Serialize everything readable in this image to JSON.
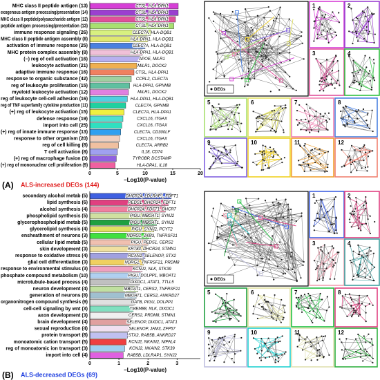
{
  "chart_data": [
    {
      "type": "bar",
      "orientation": "horizontal",
      "panel": "(A)",
      "title": "ALS-increased DEGs (144)",
      "title_color": "#e02020",
      "xlabel": "−Log10(P-value)",
      "xlim": [
        0,
        20
      ],
      "xticks": [
        0,
        5,
        10,
        15,
        20
      ],
      "categories": [
        "MHC class II peptide antigen (13)",
        "exogenous antigen processing/presentation (14)",
        "MHC class II peptide/polysaccharide antigen (12)",
        "peptide antigen processing/presentation (13)",
        "immune response signaling (26)",
        "MHC class II peptide antigen assembly (8)",
        "activation of immune response (25)",
        "MHC protein complex assembly (8)",
        "(−) reg of cell activation (16)",
        "leukocyte activation (21)",
        "adaptive immune response (16)",
        "response to organic substance (42)",
        "reg of leukocyte proliferation (15)",
        "myeloid leukocyte activation (12)",
        "reg of leukocyte cell-cell adhesion (16)",
        "reg of TNF superfamily cytokine production (11)",
        "(+) reg of leukocyte activation (15)",
        "defense response (19)",
        "import into cell (25)",
        "(+) reg of innate immune response (13)",
        "response to other organism (20)",
        "reg of cell killing (8)",
        "T cell activation (8)",
        "(+) reg of macrophage fusion (3)",
        "(+) reg of mononuclear cell proliferation (9)"
      ],
      "values": [
        16,
        16,
        15.5,
        15.2,
        11,
        10.5,
        10,
        9.5,
        9,
        8.5,
        8,
        7.5,
        7.2,
        7,
        6.8,
        6.5,
        6.2,
        6,
        5.8,
        5.6,
        5.4,
        5.2,
        5,
        4.8,
        4.6
      ],
      "gene_labels": [
        "CTSL, HLA-DPA1",
        "CTSL, HLA-DPA1",
        "CTSL, HLA-DPA1",
        "CTSL, HLA-DPA1",
        "CLEC7A, HLA-DQB1",
        "HLA-DPA1, HLA-DQB1",
        "CLEC7A, HLA-DQB1",
        "HLA-DPA1, HLA-DQB1",
        "APOE, MILR1",
        "MILR1, DOCK2",
        "CTSL, HLA-DPA1",
        "CCRL2, CLEC7A",
        "HLA-DPA1, GPNMB",
        "MILR1, DOCK2",
        "HLA-DPA1, HLA-DQB1",
        "CLEC7A, GPNMB",
        "CLEC7A, HLA-DPA1",
        "CXCL16, ITGAX",
        "CXCL16, ITGAX",
        "CLEC7A, CD300LF",
        "CXCL16, ITGAX",
        "CLEC7A, ARRB2",
        "IL18, CD74",
        "TYROBP, DCSTAMP",
        "HLA-DPA1, IL18"
      ],
      "colors": [
        "#d63fd6",
        "#9b3fd0",
        "#e0509a",
        "#a8e070",
        "#d8f080",
        "#e0e870",
        "#4a80e0",
        "#f0c0d8",
        "#b8b0f0",
        "#f0b050",
        "#f08060",
        "#a0d0a0",
        "#60c0a0",
        "#e080e0",
        "#50d0e0",
        "#20d0a0",
        "#f0f040",
        "#50e0d0",
        "#30e0c0",
        "#30a0f0",
        "#f0d0c0",
        "#f0c0a0",
        "#a0a0f0",
        "#9060e0",
        "#f060a0"
      ]
    },
    {
      "type": "bar",
      "orientation": "horizontal",
      "panel": "(B)",
      "title": "ALS-decreased DEGs (69)",
      "title_color": "#2040e0",
      "xlabel": "−Log10(P-value)",
      "xlim": [
        0,
        3.8
      ],
      "xticks": [
        0,
        1,
        2,
        3
      ],
      "categories": [
        "secondary alcohol metab (5)",
        "lipid synthesis (6)",
        "alcohol synthesis (4)",
        "phospholipid synthesis (5)",
        "glycerophospholipid metab (5)",
        "glycerolipid synthesis (4)",
        "ensheathment of neurons (3)",
        "cellular lipid metab (5)",
        "skin development (3)",
        "response to oxidative stress (4)",
        "glial cell differentiation (3)",
        "response to environmental stimulus (3)",
        "phosphate compound metabolism (10)",
        "microtubule-based process (4)",
        "neuron development (4)",
        "generation of neurons (8)",
        "organonitrogen compound synthesis (9)",
        "cell-cell signaling by wnt (3)",
        "axon development (3)",
        "brain development (4)",
        "sexual reproduction (4)",
        "protein transport (8)",
        "monoatomic cation transport (5)",
        "reg of monoatomic ion transport (3)",
        "import into cell (4)"
      ],
      "values": [
        2.8,
        2.7,
        2.6,
        2.4,
        2.3,
        2.2,
        2.1,
        2.0,
        1.95,
        1.9,
        1.85,
        1.8,
        1.75,
        1.7,
        1.65,
        1.6,
        1.55,
        1.5,
        1.45,
        1.4,
        1.35,
        1.3,
        1.25,
        1.2,
        1.15
      ],
      "gene_labels": [
        "DHCR24, LDLRAP1, FDFT1",
        "PEDS1, DHCR24, FDFT1",
        "DHCR24, FDFT1, DHCR7",
        "PIGU, MBOAT1, SYNJ2",
        "PIGU, MBOAT1, SYNJ2",
        "PIGU, SYNJ2, PCYT2",
        "NDRG1, JAM3, TNFRSF21",
        "PIGU, PEDS1, CERS2",
        "KRT83, DHCR24, STMN1",
        "RCAN1, SELENOP, STX2",
        "NDRG1, TNFRSF21, PRDM8",
        "KCNJ2, NLK, STK39",
        "PIGU, DOLPP1, MBOAT1",
        "DIXDC1, ATAT1, TTLL5",
        "MBOAT1, CERS2, TNFRSF21",
        "MBOAT1, CERS2, ANKRD27",
        "GATB, PIGU, DOLPP1",
        "TMEM88, NLK, DIXDC1",
        "CERS2, PRDM8, STMN1",
        "SELENOP, DIXDC1, ATAT1",
        "SELENOP, JAM3, ZFP57",
        "STX2, RAB5B, ANKRD27",
        "KCNJ2, NKAIN2, NIPAL4",
        "KCNJ2, NKAIN2, STK39",
        "RAB5B, LDLRAP1, SYNJ2"
      ],
      "colors": [
        "#4060e0",
        "#e04080",
        "#f080a0",
        "#d0e0a0",
        "#20a040",
        "#e0e060",
        "#40e040",
        "#f0c0b0",
        "#f0e0a0",
        "#a0a0e0",
        "#f0d060",
        "#f0a0c0",
        "#b0d0f0",
        "#c0c0c0",
        "#c0e0a0",
        "#a0c0d0",
        "#e0e0e0",
        "#80e0c0",
        "#f0f0f0",
        "#e0a0a0",
        "#f0e0f0",
        "#c0c0f0",
        "#f04040",
        "#a0d0f0",
        "#e060e0"
      ]
    }
  ],
  "networks": [
    {
      "legend": "DEGs",
      "panels": [
        1,
        2,
        3,
        4,
        5,
        6,
        7,
        8,
        9,
        10,
        11,
        12
      ]
    },
    {
      "legend": "DEGs",
      "panels": [
        1,
        2,
        3,
        4,
        5,
        6,
        7,
        8,
        9,
        10,
        11,
        12
      ]
    }
  ]
}
